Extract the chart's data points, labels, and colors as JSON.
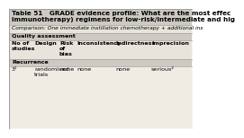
{
  "title_line1": "Table 51   GRADE evidence profile: What are the most effec",
  "title_line2": "immunotherapy) regimens for low-risk/intermediate and hig",
  "comparison": "Comparison: One immediate instillation chemotherapy + additional ins",
  "section_quality": "Quality assessment",
  "col_headers_line1": [
    "No of",
    "Design",
    "Risk",
    "Inconsistency",
    "Indirectness",
    "Imprecision"
  ],
  "col_headers_line2": [
    "studies",
    "",
    "of",
    "",
    "",
    ""
  ],
  "col_headers_line3": [
    "",
    "",
    "bias",
    "",
    "",
    ""
  ],
  "section_recurrence": "Recurrence",
  "row_col1": "3¹",
  "row_col2_line1": "randomised",
  "row_col2_line2": "trials",
  "row_col3": "none",
  "row_col4": "none",
  "row_col5": "none",
  "row_col6": "serious²",
  "bg_title": "#cdc9c3",
  "bg_comparison": "#e8e4dc",
  "bg_section": "#cdc9c3",
  "bg_colheader": "#e8e4dc",
  "bg_data": "#f0ece4",
  "bg_white": "#ffffff",
  "border_color": "#a0a0a0",
  "text_color": "#000000",
  "font_size_title": 5.2,
  "font_size_body": 4.6,
  "font_size_comparison": 4.3
}
